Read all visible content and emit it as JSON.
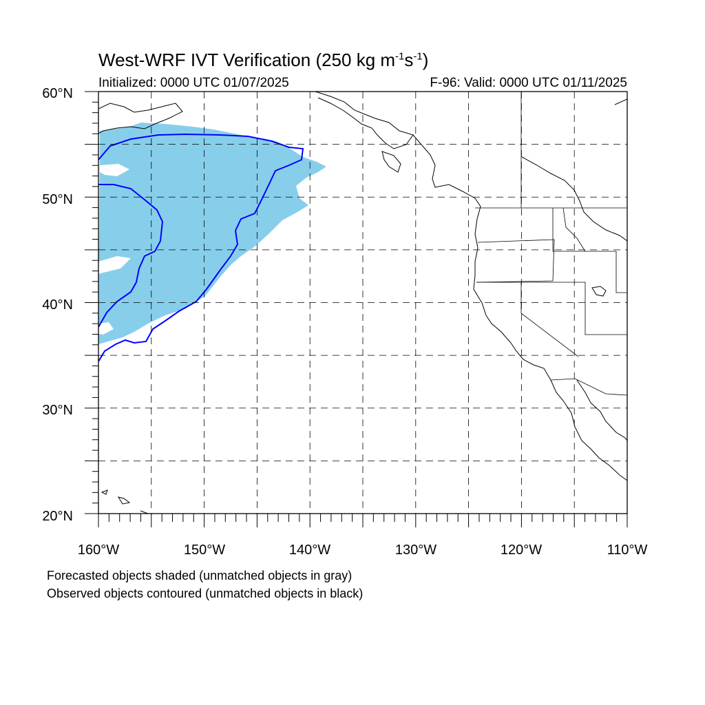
{
  "title": {
    "main": "West-WRF IVT Verification (250 kg m",
    "sup1": "-1",
    "mid": "s",
    "sup2": "-1",
    "close": ")"
  },
  "subtitle_left": "Initialized: 0000 UTC 01/07/2025",
  "subtitle_right": "F-96: Valid: 0000 UTC 01/11/2025",
  "footnotes": [
    "Forecasted objects shaded (unmatched objects in gray)",
    "Observed objects contoured (unmatched objects in black)"
  ],
  "map": {
    "lon_range": [
      -160,
      -110
    ],
    "lat_range": [
      20,
      60
    ],
    "lon_labels": [
      "160°W",
      "150°W",
      "140°W",
      "130°W",
      "120°W",
      "110°W"
    ],
    "lat_labels": [
      "20°N",
      "30°N",
      "40°N",
      "50°N",
      "60°N"
    ],
    "grid_spacing_deg": 5,
    "minor_tick_deg": 1,
    "grid_lines": "dashed",
    "colors": {
      "forecast_matched_fill": "#87CEEB",
      "observed_matched_contour": "#0000FF",
      "coastline": "#000000"
    }
  }
}
